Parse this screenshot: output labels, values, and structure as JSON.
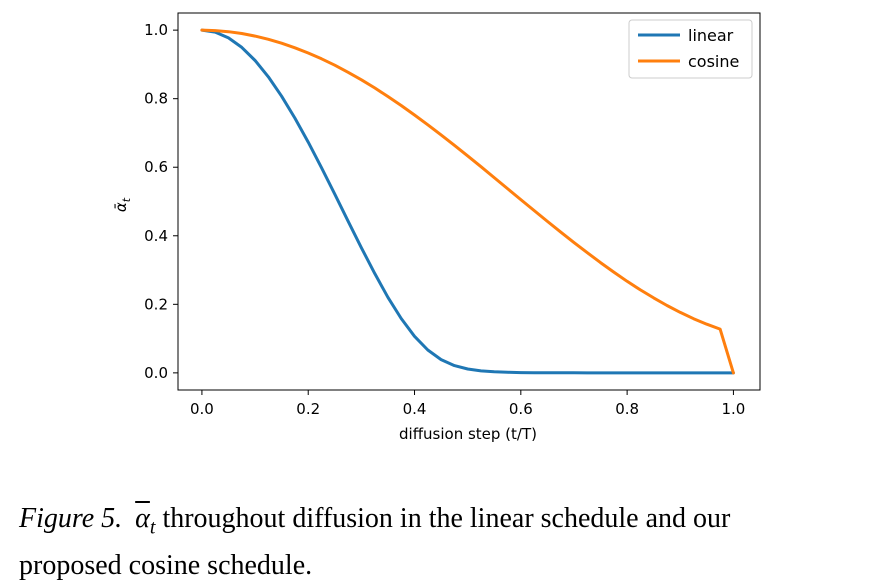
{
  "chart_data": {
    "type": "line",
    "title": "",
    "xlabel": "diffusion step (t/T)",
    "ylabel": "ᾱt",
    "xlim": [
      -0.045,
      1.05
    ],
    "ylim": [
      -0.05,
      1.05
    ],
    "x_ticks": [
      0.0,
      0.2,
      0.4,
      0.6,
      0.8,
      1.0
    ],
    "x_tick_labels": [
      "0.0",
      "0.2",
      "0.4",
      "0.6",
      "0.8",
      "1.0"
    ],
    "y_ticks": [
      0.0,
      0.2,
      0.4,
      0.6,
      0.8,
      1.0
    ],
    "y_tick_labels": [
      "0.0",
      "0.2",
      "0.4",
      "0.6",
      "0.8",
      "1.0"
    ],
    "legend_position": "top-right",
    "series": [
      {
        "name": "linear",
        "color": "#1f77b4",
        "x": [
          0.0,
          0.025,
          0.05,
          0.075,
          0.1,
          0.125,
          0.15,
          0.175,
          0.2,
          0.225,
          0.25,
          0.275,
          0.3,
          0.325,
          0.35,
          0.375,
          0.4,
          0.425,
          0.45,
          0.475,
          0.5,
          0.525,
          0.55,
          0.575,
          0.6,
          0.625,
          0.65,
          0.675,
          0.7,
          0.725,
          0.75,
          0.775,
          0.8,
          0.825,
          0.85,
          0.875,
          0.9,
          0.925,
          0.95,
          0.975,
          1.0
        ],
        "y": [
          1.0,
          0.9943,
          0.9774,
          0.9496,
          0.9114,
          0.8637,
          0.8072,
          0.7433,
          0.6732,
          0.5987,
          0.5212,
          0.4426,
          0.3649,
          0.2901,
          0.2206,
          0.1586,
          0.1067,
          0.0667,
          0.0388,
          0.0212,
          0.0112,
          0.0058,
          0.003,
          0.0015,
          0.0008,
          0.0004,
          0.0002,
          0.0001,
          0.0001,
          0.0,
          0.0,
          0.0,
          0.0,
          0.0,
          0.0,
          0.0,
          0.0,
          0.0,
          0.0,
          0.0,
          0.0
        ]
      },
      {
        "name": "cosine",
        "color": "#ff7f0e",
        "x": [
          0.0,
          0.025,
          0.05,
          0.075,
          0.1,
          0.125,
          0.15,
          0.175,
          0.2,
          0.225,
          0.25,
          0.275,
          0.3,
          0.325,
          0.35,
          0.375,
          0.4,
          0.425,
          0.45,
          0.475,
          0.5,
          0.525,
          0.55,
          0.575,
          0.6,
          0.625,
          0.65,
          0.675,
          0.7,
          0.725,
          0.75,
          0.775,
          0.8,
          0.825,
          0.85,
          0.875,
          0.9,
          0.925,
          0.95,
          0.975,
          1.0
        ],
        "y": [
          1.0,
          0.9987,
          0.9954,
          0.9901,
          0.9827,
          0.9733,
          0.9619,
          0.9486,
          0.9334,
          0.9164,
          0.8976,
          0.8771,
          0.855,
          0.8314,
          0.8063,
          0.78,
          0.7525,
          0.7239,
          0.6943,
          0.664,
          0.633,
          0.6015,
          0.5697,
          0.5376,
          0.5056,
          0.4736,
          0.442,
          0.4108,
          0.3802,
          0.3505,
          0.3216,
          0.2939,
          0.2673,
          0.2422,
          0.2186,
          0.1966,
          0.1764,
          0.1581,
          0.1419,
          0.1278,
          0.0
        ]
      }
    ]
  },
  "caption": {
    "figure_label": "Figure 5.",
    "symbol_main": "α",
    "symbol_sub": "t",
    "text_line1": "throughout diffusion in the linear schedule and our",
    "text_line2": "proposed cosine schedule."
  }
}
